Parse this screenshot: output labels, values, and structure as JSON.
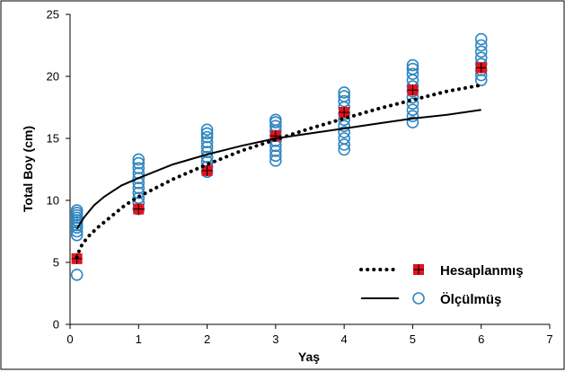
{
  "chart_data": {
    "type": "scatter",
    "title": "",
    "xlabel": "Yaş",
    "ylabel": "Total Boy (cm)",
    "xlim": [
      0,
      7
    ],
    "ylim": [
      0,
      25
    ],
    "x_ticks": [
      0,
      1,
      2,
      3,
      4,
      5,
      6,
      7
    ],
    "y_ticks": [
      0,
      5,
      10,
      15,
      20,
      25
    ],
    "grid": false,
    "legend_position": "bottom-right",
    "colors": {
      "measured": "#2e86c1",
      "calculated": "#e3131b",
      "curve": "#000000"
    },
    "series": [
      {
        "name": "Ölçülmüş",
        "style": "hollow-circle-marker, solid line",
        "points": [
          [
            0.1,
            4.0
          ],
          [
            0.1,
            7.2
          ],
          [
            0.1,
            7.5
          ],
          [
            0.1,
            7.8
          ],
          [
            0.1,
            8.0
          ],
          [
            0.1,
            8.2
          ],
          [
            0.1,
            8.4
          ],
          [
            0.1,
            8.6
          ],
          [
            0.1,
            8.8
          ],
          [
            0.1,
            9.0
          ],
          [
            0.1,
            9.2
          ],
          [
            1,
            9.3
          ],
          [
            1,
            9.8
          ],
          [
            1,
            10.2
          ],
          [
            1,
            10.6
          ],
          [
            1,
            11.0
          ],
          [
            1,
            11.4
          ],
          [
            1,
            11.8
          ],
          [
            1,
            12.2
          ],
          [
            1,
            12.6
          ],
          [
            1,
            13.0
          ],
          [
            1,
            13.3
          ],
          [
            2,
            12.3
          ],
          [
            2,
            12.7
          ],
          [
            2,
            13.1
          ],
          [
            2,
            13.5
          ],
          [
            2,
            13.9
          ],
          [
            2,
            14.3
          ],
          [
            2,
            14.7
          ],
          [
            2,
            15.1
          ],
          [
            2,
            15.4
          ],
          [
            2,
            15.7
          ],
          [
            3,
            13.2
          ],
          [
            3,
            13.6
          ],
          [
            3,
            14.0
          ],
          [
            3,
            14.4
          ],
          [
            3,
            14.8
          ],
          [
            3,
            15.2
          ],
          [
            3,
            15.6
          ],
          [
            3,
            16.0
          ],
          [
            3,
            16.3
          ],
          [
            3,
            16.5
          ],
          [
            4,
            14.1
          ],
          [
            4,
            14.5
          ],
          [
            4,
            15.0
          ],
          [
            4,
            15.5
          ],
          [
            4,
            16.0
          ],
          [
            4,
            16.5
          ],
          [
            4,
            17.0
          ],
          [
            4,
            17.5
          ],
          [
            4,
            18.0
          ],
          [
            4,
            18.4
          ],
          [
            4,
            18.7
          ],
          [
            5,
            16.3
          ],
          [
            5,
            16.8
          ],
          [
            5,
            17.3
          ],
          [
            5,
            17.8
          ],
          [
            5,
            18.3
          ],
          [
            5,
            18.8
          ],
          [
            5,
            19.2
          ],
          [
            5,
            19.7
          ],
          [
            5,
            20.2
          ],
          [
            5,
            20.6
          ],
          [
            5,
            20.9
          ],
          [
            6,
            19.7
          ],
          [
            6,
            20.1
          ],
          [
            6,
            20.5
          ],
          [
            6,
            21.0
          ],
          [
            6,
            21.5
          ],
          [
            6,
            22.0
          ],
          [
            6,
            22.5
          ],
          [
            6,
            23.0
          ]
        ],
        "curve": [
          [
            0.1,
            7.7
          ],
          [
            0.2,
            8.6
          ],
          [
            0.35,
            9.6
          ],
          [
            0.5,
            10.3
          ],
          [
            0.75,
            11.2
          ],
          [
            1,
            11.8
          ],
          [
            1.5,
            12.9
          ],
          [
            2,
            13.7
          ],
          [
            2.5,
            14.4
          ],
          [
            3,
            15.0
          ],
          [
            3.5,
            15.4
          ],
          [
            4,
            15.8
          ],
          [
            4.5,
            16.2
          ],
          [
            5,
            16.6
          ],
          [
            5.5,
            16.9
          ],
          [
            6,
            17.3
          ]
        ]
      },
      {
        "name": "Hesaplanmış",
        "style": "red square marker, dotted line",
        "points": [
          [
            0.1,
            5.3
          ],
          [
            1,
            9.3
          ],
          [
            2,
            12.4
          ],
          [
            3,
            15.2
          ],
          [
            4,
            17.1
          ],
          [
            5,
            18.9
          ],
          [
            6,
            20.7
          ]
        ],
        "curve": [
          [
            0.1,
            5.4
          ],
          [
            0.15,
            6.2
          ],
          [
            0.25,
            7.0
          ],
          [
            0.4,
            7.8
          ],
          [
            0.6,
            8.7
          ],
          [
            0.8,
            9.6
          ],
          [
            1,
            10.3
          ],
          [
            1.5,
            11.7
          ],
          [
            2,
            12.9
          ],
          [
            2.5,
            14.0
          ],
          [
            3,
            14.9
          ],
          [
            3.5,
            15.8
          ],
          [
            4,
            16.6
          ],
          [
            4.5,
            17.4
          ],
          [
            5,
            18.1
          ],
          [
            5.5,
            18.8
          ],
          [
            6,
            19.3
          ]
        ]
      }
    ]
  }
}
